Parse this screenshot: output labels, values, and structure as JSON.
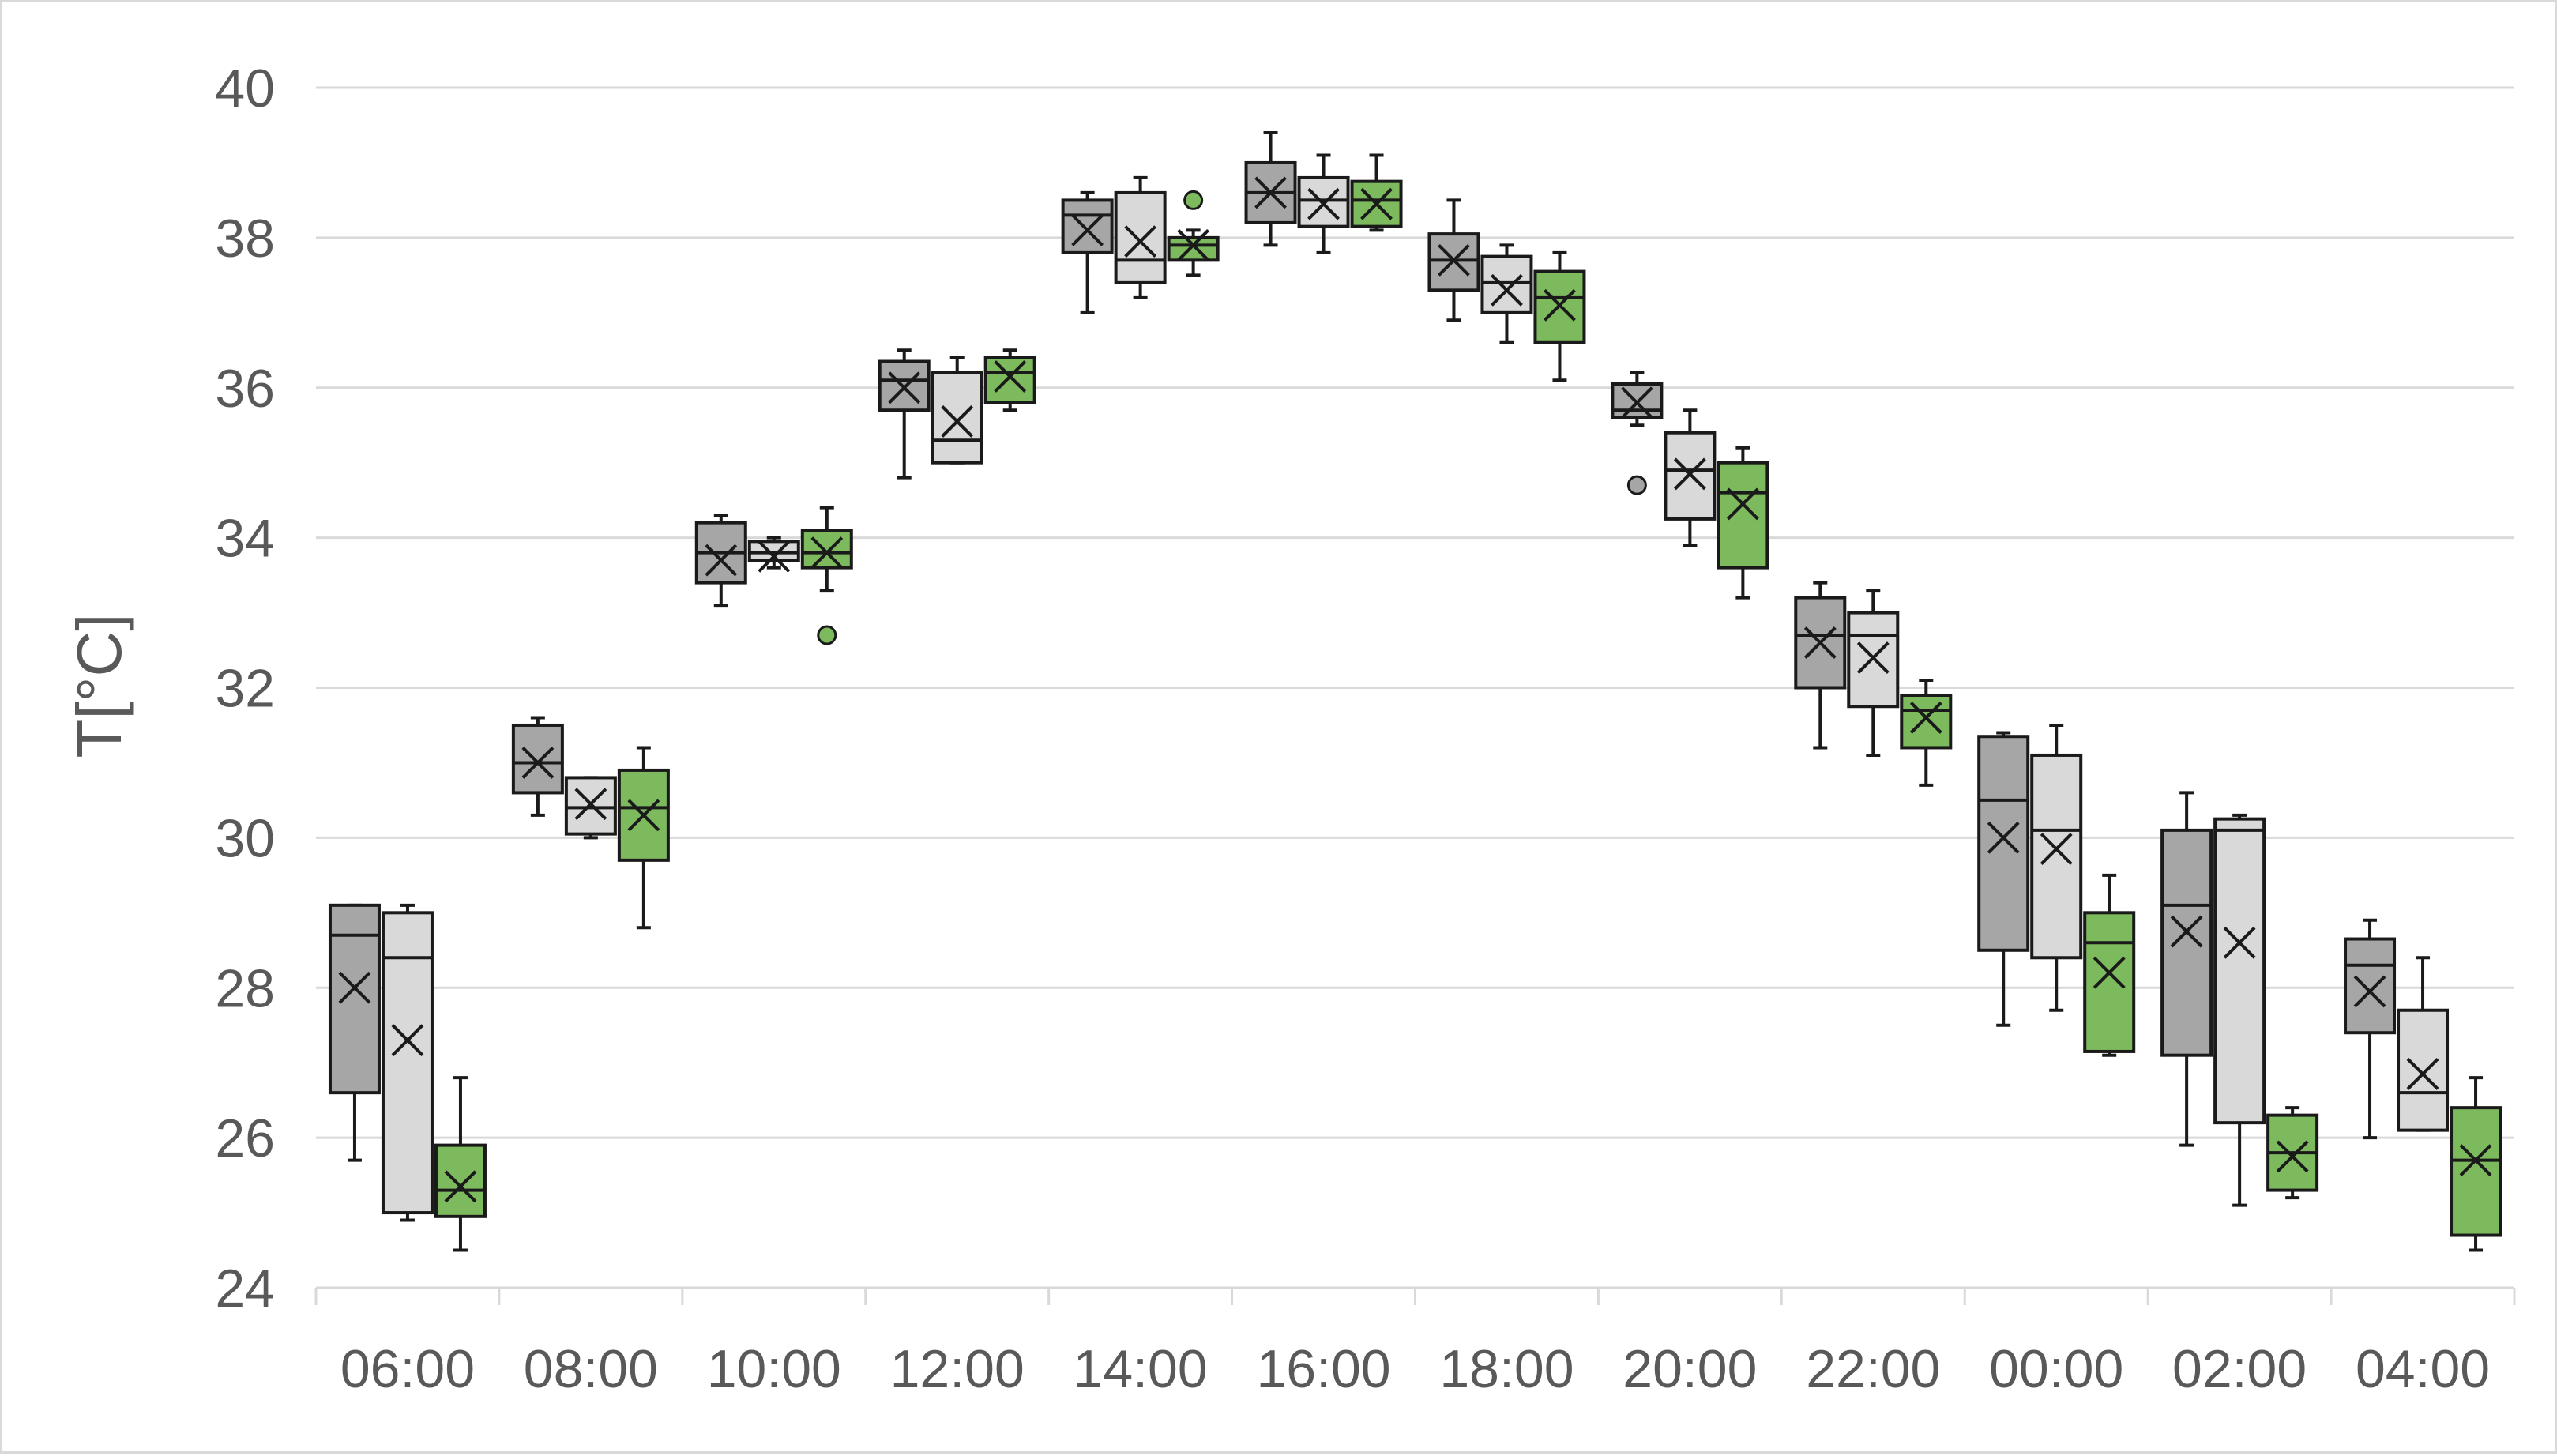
{
  "chart_data": {
    "type": "box",
    "title": "",
    "xlabel": "",
    "ylabel": "T[°C]",
    "ylim": [
      24,
      40
    ],
    "yticks": [
      24,
      26,
      28,
      30,
      32,
      34,
      36,
      38,
      40
    ],
    "grid": true,
    "legend": "none",
    "categories": [
      "06:00",
      "08:00",
      "10:00",
      "12:00",
      "14:00",
      "16:00",
      "18:00",
      "20:00",
      "22:00",
      "00:00",
      "02:00",
      "04:00"
    ],
    "series": [
      {
        "color": "#a6a6a6",
        "boxes": [
          {
            "min": 25.7,
            "q1": 26.6,
            "median": 28.7,
            "q3": 29.1,
            "max": 29.1,
            "mean": 28.0,
            "outliers": []
          },
          {
            "min": 30.3,
            "q1": 30.6,
            "median": 31.0,
            "q3": 31.5,
            "max": 31.6,
            "mean": 31.0,
            "outliers": []
          },
          {
            "min": 33.1,
            "q1": 33.4,
            "median": 33.8,
            "q3": 34.2,
            "max": 34.3,
            "mean": 33.7,
            "outliers": []
          },
          {
            "min": 34.8,
            "q1": 35.7,
            "median": 36.1,
            "q3": 36.35,
            "max": 36.5,
            "mean": 36.0,
            "outliers": []
          },
          {
            "min": 37.0,
            "q1": 37.8,
            "median": 38.3,
            "q3": 38.5,
            "max": 38.6,
            "mean": 38.1,
            "outliers": []
          },
          {
            "min": 37.9,
            "q1": 38.2,
            "median": 38.6,
            "q3": 39.0,
            "max": 39.4,
            "mean": 38.6,
            "outliers": []
          },
          {
            "min": 36.9,
            "q1": 37.3,
            "median": 37.7,
            "q3": 38.05,
            "max": 38.5,
            "mean": 37.7,
            "outliers": []
          },
          {
            "min": 35.5,
            "q1": 35.6,
            "median": 35.7,
            "q3": 36.05,
            "max": 36.2,
            "mean": 35.8,
            "outliers": [
              34.7
            ]
          },
          {
            "min": 31.2,
            "q1": 32.0,
            "median": 32.7,
            "q3": 33.2,
            "max": 33.4,
            "mean": 32.6,
            "outliers": []
          },
          {
            "min": 27.5,
            "q1": 28.5,
            "median": 30.5,
            "q3": 31.35,
            "max": 31.4,
            "mean": 30.0,
            "outliers": []
          },
          {
            "min": 25.9,
            "q1": 27.1,
            "median": 29.1,
            "q3": 30.1,
            "max": 30.6,
            "mean": 28.75,
            "outliers": []
          },
          {
            "min": 26.0,
            "q1": 27.4,
            "median": 28.3,
            "q3": 28.65,
            "max": 28.9,
            "mean": 27.95,
            "outliers": []
          }
        ]
      },
      {
        "color": "#d9d9d9",
        "boxes": [
          {
            "min": 24.9,
            "q1": 25.0,
            "median": 28.4,
            "q3": 29.0,
            "max": 29.1,
            "mean": 27.3,
            "outliers": []
          },
          {
            "min": 30.0,
            "q1": 30.05,
            "median": 30.4,
            "q3": 30.8,
            "max": 30.8,
            "mean": 30.45,
            "outliers": []
          },
          {
            "min": 33.6,
            "q1": 33.7,
            "median": 33.8,
            "q3": 33.95,
            "max": 34.0,
            "mean": 33.75,
            "outliers": []
          },
          {
            "min": 35.0,
            "q1": 35.0,
            "median": 35.3,
            "q3": 36.2,
            "max": 36.4,
            "mean": 35.55,
            "outliers": []
          },
          {
            "min": 37.2,
            "q1": 37.4,
            "median": 37.7,
            "q3": 38.6,
            "max": 38.8,
            "mean": 37.95,
            "outliers": []
          },
          {
            "min": 37.8,
            "q1": 38.15,
            "median": 38.5,
            "q3": 38.8,
            "max": 39.1,
            "mean": 38.45,
            "outliers": []
          },
          {
            "min": 36.6,
            "q1": 37.0,
            "median": 37.4,
            "q3": 37.75,
            "max": 37.9,
            "mean": 37.3,
            "outliers": []
          },
          {
            "min": 33.9,
            "q1": 34.25,
            "median": 34.9,
            "q3": 35.4,
            "max": 35.7,
            "mean": 34.85,
            "outliers": []
          },
          {
            "min": 31.1,
            "q1": 31.75,
            "median": 32.7,
            "q3": 33.0,
            "max": 33.3,
            "mean": 32.4,
            "outliers": []
          },
          {
            "min": 27.7,
            "q1": 28.4,
            "median": 30.1,
            "q3": 31.1,
            "max": 31.5,
            "mean": 29.85,
            "outliers": []
          },
          {
            "min": 25.1,
            "q1": 26.2,
            "median": 30.1,
            "q3": 30.25,
            "max": 30.3,
            "mean": 28.6,
            "outliers": []
          },
          {
            "min": 26.1,
            "q1": 26.1,
            "median": 26.6,
            "q3": 27.7,
            "max": 28.4,
            "mean": 26.85,
            "outliers": []
          }
        ]
      },
      {
        "color": "#7dba5e",
        "boxes": [
          {
            "min": 24.5,
            "q1": 24.95,
            "median": 25.3,
            "q3": 25.9,
            "max": 26.8,
            "mean": 25.35,
            "outliers": []
          },
          {
            "min": 28.8,
            "q1": 29.7,
            "median": 30.4,
            "q3": 30.9,
            "max": 31.2,
            "mean": 30.3,
            "outliers": []
          },
          {
            "min": 33.3,
            "q1": 33.6,
            "median": 33.8,
            "q3": 34.1,
            "max": 34.4,
            "mean": 33.8,
            "outliers": [
              32.7
            ]
          },
          {
            "min": 35.7,
            "q1": 35.8,
            "median": 36.2,
            "q3": 36.4,
            "max": 36.5,
            "mean": 36.15,
            "outliers": []
          },
          {
            "min": 37.5,
            "q1": 37.7,
            "median": 37.9,
            "q3": 38.0,
            "max": 38.1,
            "mean": 37.9,
            "outliers": [
              38.5
            ]
          },
          {
            "min": 38.1,
            "q1": 38.15,
            "median": 38.5,
            "q3": 38.75,
            "max": 39.1,
            "mean": 38.45,
            "outliers": []
          },
          {
            "min": 36.1,
            "q1": 36.6,
            "median": 37.2,
            "q3": 37.55,
            "max": 37.8,
            "mean": 37.1,
            "outliers": []
          },
          {
            "min": 33.2,
            "q1": 33.6,
            "median": 34.6,
            "q3": 35.0,
            "max": 35.2,
            "mean": 34.45,
            "outliers": []
          },
          {
            "min": 30.7,
            "q1": 31.2,
            "median": 31.7,
            "q3": 31.9,
            "max": 32.1,
            "mean": 31.6,
            "outliers": []
          },
          {
            "min": 27.1,
            "q1": 27.15,
            "median": 28.6,
            "q3": 29.0,
            "max": 29.5,
            "mean": 28.2,
            "outliers": []
          },
          {
            "min": 25.2,
            "q1": 25.3,
            "median": 25.8,
            "q3": 26.3,
            "max": 26.4,
            "mean": 25.75,
            "outliers": []
          },
          {
            "min": 24.5,
            "q1": 24.7,
            "median": 25.7,
            "q3": 26.4,
            "max": 26.8,
            "mean": 25.7,
            "outliers": []
          }
        ]
      }
    ]
  }
}
